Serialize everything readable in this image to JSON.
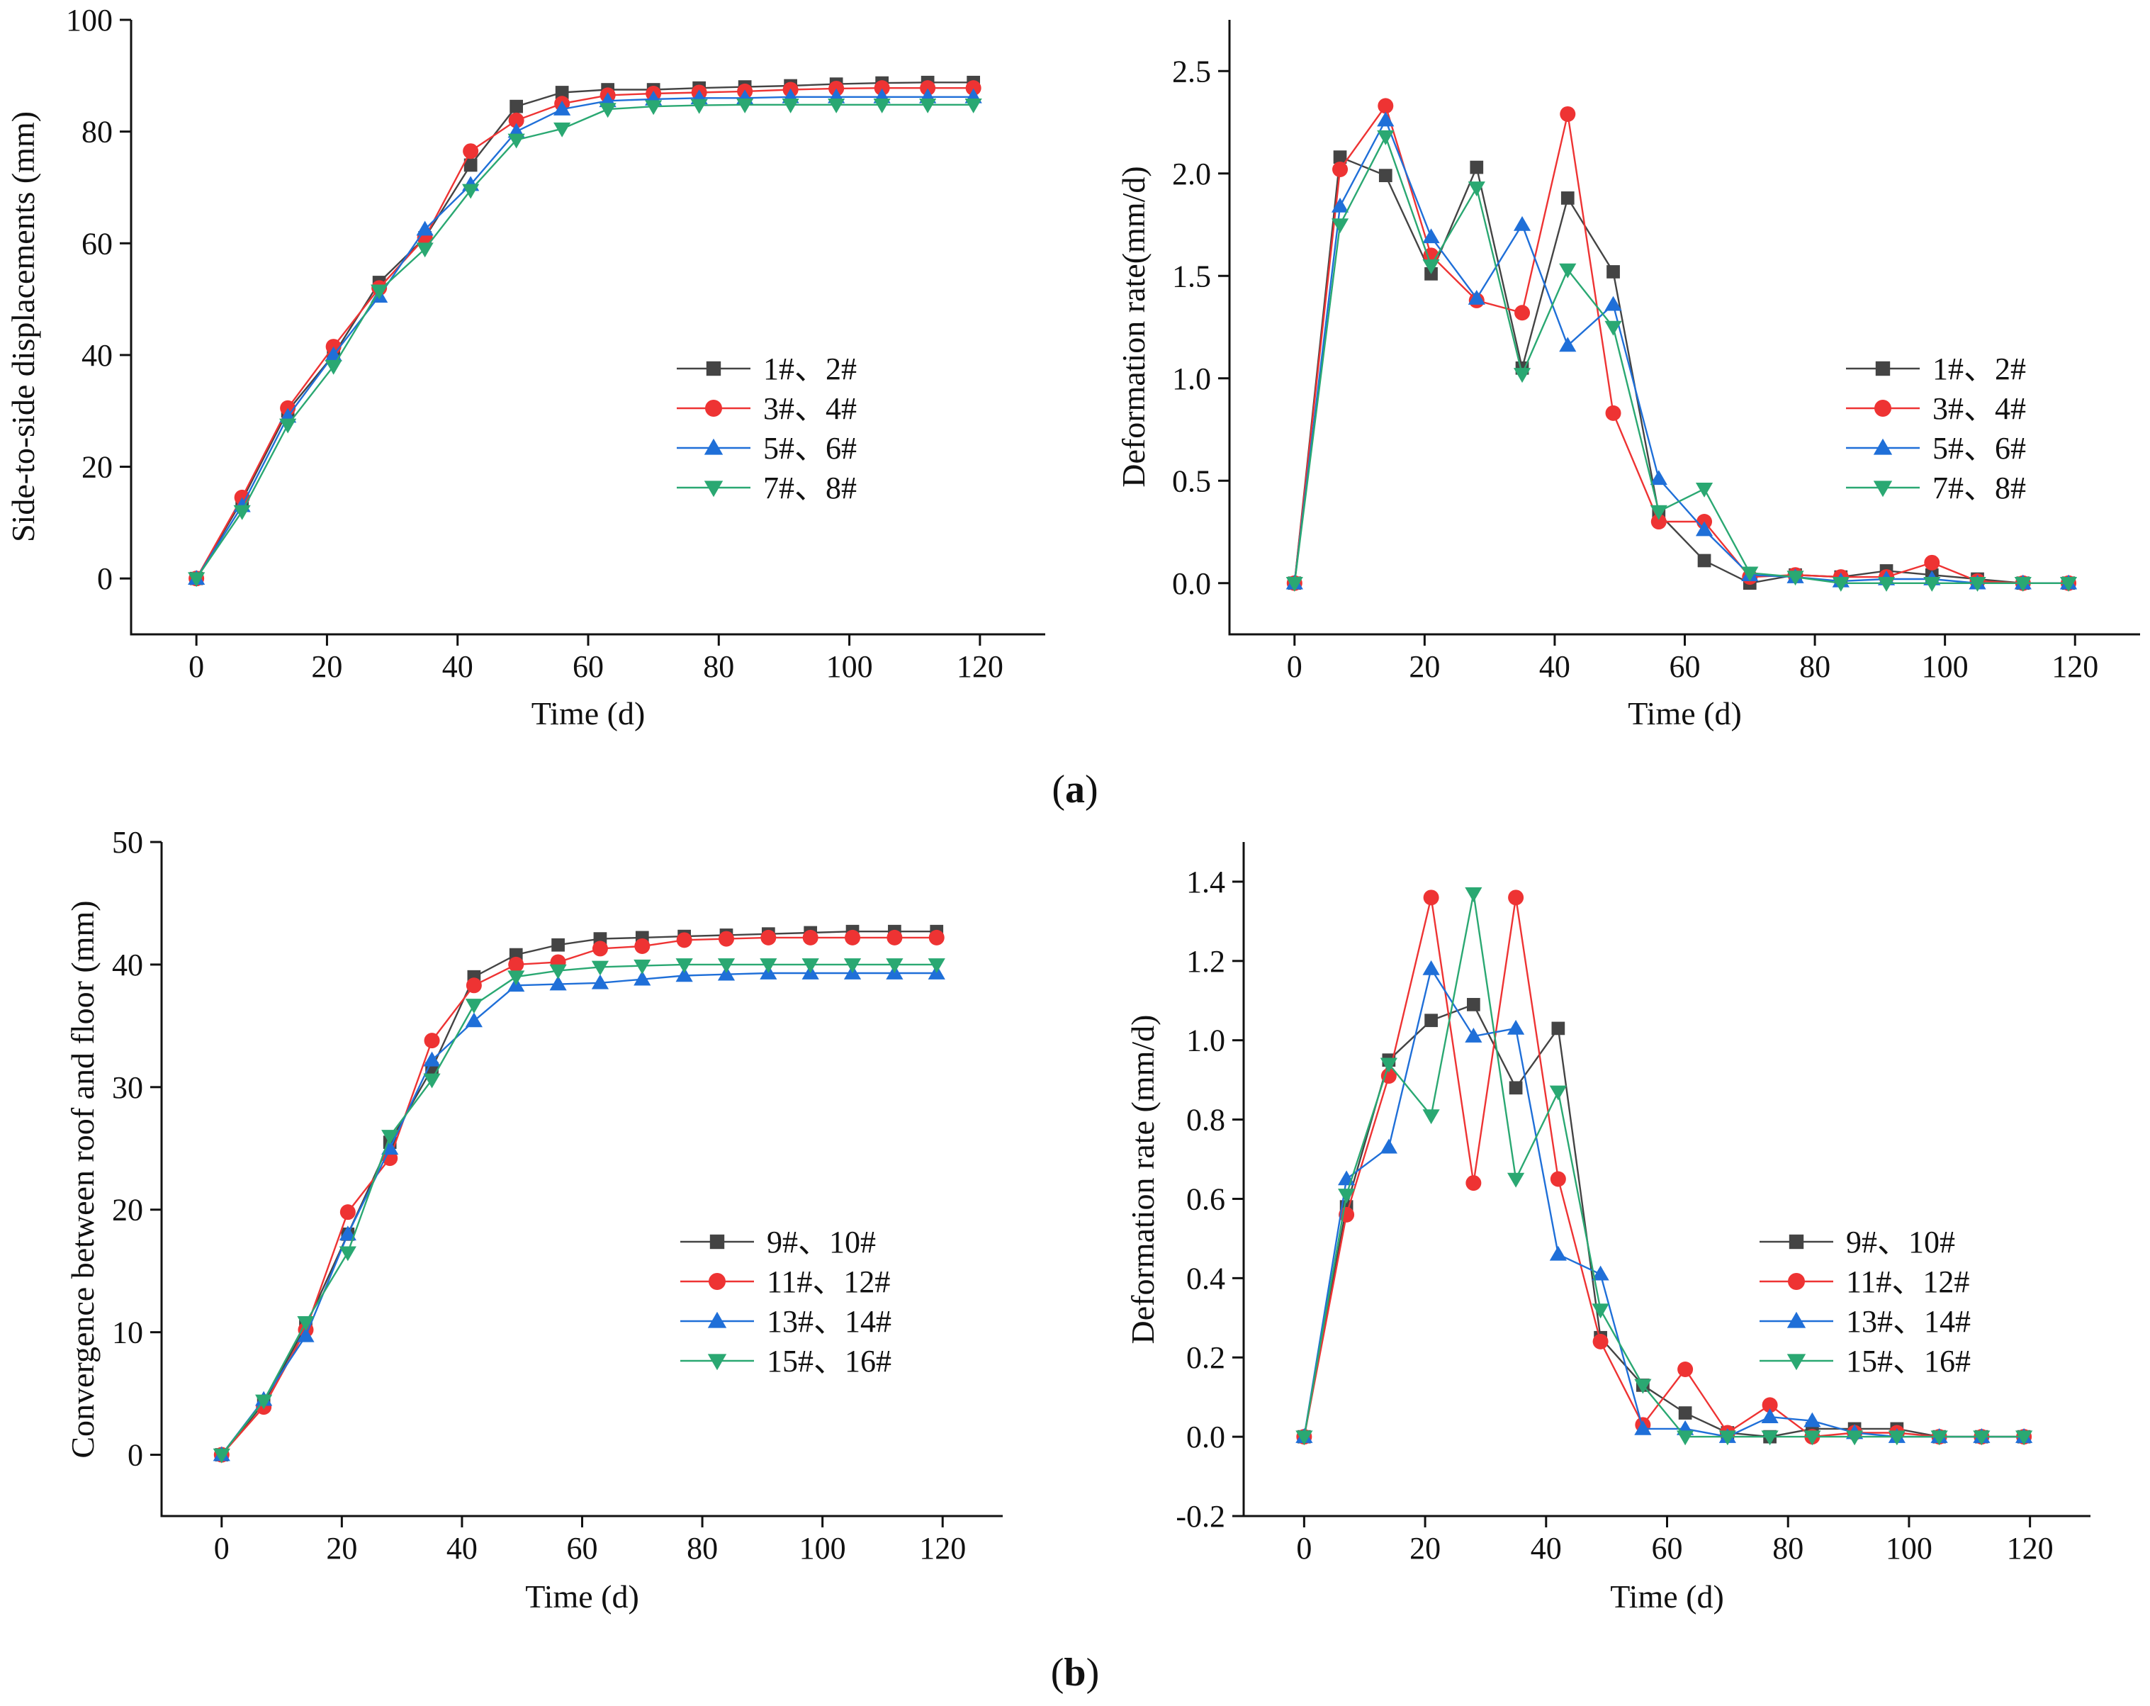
{
  "figure": {
    "panel_a": {
      "open": "(",
      "letter": "a",
      "close": ")"
    },
    "panel_b": {
      "open": "(",
      "letter": "b",
      "close": ")"
    }
  },
  "colors": {
    "black": "#444444",
    "red": "#ee3333",
    "blue": "#1f6fd8",
    "green": "#2aa872"
  },
  "chart_data": [
    {
      "id": "a-left",
      "type": "line",
      "title": "",
      "xlabel": "Time (d)",
      "ylabel": "Side-to-side displacements (mm)",
      "xlim": [
        -10,
        130
      ],
      "ylim": [
        -10,
        100
      ],
      "xticks": [
        0,
        20,
        40,
        60,
        80,
        100,
        120
      ],
      "yticks": [
        0,
        20,
        40,
        60,
        80,
        100
      ],
      "ytick_labels": [
        "0",
        "20",
        "40",
        "60",
        "80",
        "100"
      ],
      "legend_position": "center-right",
      "x": [
        0,
        7,
        14,
        21,
        28,
        35,
        42,
        49,
        56,
        63,
        70,
        77,
        84,
        91,
        98,
        105,
        112,
        119
      ],
      "series": [
        {
          "name": "1#、2#",
          "marker": "square",
          "color": "black",
          "values": [
            0,
            14,
            30,
            40,
            53,
            61,
            74,
            84.5,
            87,
            87.5,
            87.5,
            87.8,
            88,
            88.2,
            88.5,
            88.7,
            88.8,
            88.8
          ]
        },
        {
          "name": "3#、4#",
          "marker": "circle",
          "color": "red",
          "values": [
            0,
            14.5,
            30.5,
            41.5,
            52,
            61,
            76.5,
            82,
            85,
            86.5,
            86.8,
            87,
            87.2,
            87.5,
            87.7,
            87.8,
            87.8,
            87.8
          ]
        },
        {
          "name": "5#、6#",
          "marker": "triangle-up",
          "color": "blue",
          "values": [
            0,
            13,
            29,
            40,
            50.5,
            62.5,
            70.5,
            80,
            84,
            85.5,
            85.8,
            86,
            86,
            86.2,
            86.2,
            86.2,
            86.2,
            86.2
          ]
        },
        {
          "name": "7#、8#",
          "marker": "triangle-down",
          "color": "green",
          "values": [
            0,
            12,
            27.5,
            38,
            51.5,
            59,
            69.5,
            78.5,
            80.5,
            84,
            84.5,
            84.7,
            84.8,
            84.8,
            84.8,
            84.8,
            84.8,
            84.8
          ]
        }
      ]
    },
    {
      "id": "a-right",
      "type": "line",
      "title": "",
      "xlabel": "Time (d)",
      "ylabel": "Deformation rate(mm/d)",
      "xlim": [
        -10,
        130
      ],
      "ylim": [
        -0.25,
        2.75
      ],
      "xticks": [
        0,
        20,
        40,
        60,
        80,
        100,
        120
      ],
      "yticks": [
        0,
        0.5,
        1.0,
        1.5,
        2.0,
        2.5
      ],
      "ytick_labels": [
        "0.0",
        "0.5",
        "1.0",
        "1.5",
        "2.0",
        "2.5"
      ],
      "legend_position": "center-right",
      "x": [
        0,
        7,
        14,
        21,
        28,
        35,
        42,
        49,
        56,
        63,
        70,
        77,
        84,
        91,
        98,
        105,
        112,
        119
      ],
      "series": [
        {
          "name": "1#、2#",
          "marker": "square",
          "color": "black",
          "values": [
            0,
            2.08,
            1.99,
            1.51,
            2.03,
            1.05,
            1.88,
            1.52,
            0.34,
            0.11,
            0,
            0.04,
            0.03,
            0.06,
            0.04,
            0.02,
            0,
            0
          ]
        },
        {
          "name": "3#、4#",
          "marker": "circle",
          "color": "red",
          "values": [
            0,
            2.02,
            2.33,
            1.6,
            1.38,
            1.32,
            2.29,
            0.83,
            0.3,
            0.3,
            0.03,
            0.04,
            0.03,
            0.03,
            0.1,
            0.01,
            0,
            0
          ]
        },
        {
          "name": "5#、6#",
          "marker": "triangle-up",
          "color": "blue",
          "values": [
            0,
            1.84,
            2.26,
            1.69,
            1.39,
            1.75,
            1.16,
            1.36,
            0.51,
            0.26,
            0.04,
            0.03,
            0.01,
            0.02,
            0.02,
            0,
            0,
            0
          ]
        },
        {
          "name": "7#、8#",
          "marker": "triangle-down",
          "color": "green",
          "values": [
            0,
            1.75,
            2.18,
            1.55,
            1.93,
            1.02,
            1.53,
            1.25,
            0.35,
            0.46,
            0.05,
            0.03,
            0,
            0,
            0,
            0,
            0,
            0
          ]
        }
      ]
    },
    {
      "id": "b-left",
      "type": "line",
      "title": "",
      "xlabel": "Time (d)",
      "ylabel": "Convergence between roof and floor (mm)",
      "xlim": [
        -10,
        130
      ],
      "ylim": [
        -5,
        50
      ],
      "xticks": [
        0,
        20,
        40,
        60,
        80,
        100,
        120
      ],
      "yticks": [
        0,
        10,
        20,
        30,
        40,
        50
      ],
      "ytick_labels": [
        "0",
        "10",
        "20",
        "30",
        "40",
        "50"
      ],
      "legend_position": "center-right",
      "x": [
        0,
        7,
        14,
        21,
        28,
        35,
        42,
        49,
        56,
        63,
        70,
        77,
        84,
        91,
        98,
        105,
        112,
        119
      ],
      "series": [
        {
          "name": "9#、10#",
          "marker": "square",
          "color": "black",
          "values": [
            0,
            4.2,
            10.5,
            18,
            25.5,
            31.5,
            39,
            40.8,
            41.6,
            42.1,
            42.2,
            42.3,
            42.4,
            42.5,
            42.6,
            42.7,
            42.7,
            42.7
          ]
        },
        {
          "name": "11#、12#",
          "marker": "circle",
          "color": "red",
          "values": [
            0,
            3.9,
            10.2,
            19.8,
            24.2,
            33.8,
            38.3,
            40,
            40.2,
            41.3,
            41.5,
            42,
            42.1,
            42.2,
            42.2,
            42.2,
            42.2,
            42.2
          ]
        },
        {
          "name": "13#、14#",
          "marker": "triangle-up",
          "color": "blue",
          "values": [
            0,
            4.5,
            9.7,
            18,
            25,
            32.2,
            35.4,
            38.3,
            38.4,
            38.5,
            38.8,
            39.1,
            39.2,
            39.3,
            39.3,
            39.3,
            39.3,
            39.3
          ]
        },
        {
          "name": "15#、16#",
          "marker": "triangle-down",
          "color": "green",
          "values": [
            0,
            4.4,
            10.8,
            16.5,
            26,
            30.6,
            36.7,
            39,
            39.5,
            39.8,
            39.9,
            40,
            40,
            40,
            40,
            40,
            40,
            40
          ]
        }
      ]
    },
    {
      "id": "b-right",
      "type": "line",
      "title": "",
      "xlabel": "Time (d)",
      "ylabel": "Deformation rate (mm/d)",
      "xlim": [
        -10,
        130
      ],
      "ylim": [
        -0.2,
        1.5
      ],
      "xticks": [
        0,
        20,
        40,
        60,
        80,
        100,
        120
      ],
      "yticks": [
        -0.2,
        0,
        0.2,
        0.4,
        0.6,
        0.8,
        1.0,
        1.2,
        1.4
      ],
      "ytick_labels": [
        "-0.2",
        "0.0",
        "0.2",
        "0.4",
        "0.6",
        "0.8",
        "1.0",
        "1.2",
        "1.4"
      ],
      "legend_position": "center-right",
      "x": [
        0,
        7,
        14,
        21,
        28,
        35,
        42,
        49,
        56,
        63,
        70,
        77,
        84,
        91,
        98,
        105,
        112,
        119
      ],
      "series": [
        {
          "name": "9#、10#",
          "marker": "square",
          "color": "black",
          "values": [
            0,
            0.58,
            0.95,
            1.05,
            1.09,
            0.88,
            1.03,
            0.25,
            0.13,
            0.06,
            0.01,
            0,
            0.02,
            0.02,
            0.02,
            0,
            0,
            0
          ]
        },
        {
          "name": "11#、12#",
          "marker": "circle",
          "color": "red",
          "values": [
            0,
            0.56,
            0.91,
            1.36,
            0.64,
            1.36,
            0.65,
            0.24,
            0.03,
            0.17,
            0.01,
            0.08,
            0,
            0.01,
            0.01,
            0,
            0,
            0
          ]
        },
        {
          "name": "13#、14#",
          "marker": "triangle-up",
          "color": "blue",
          "values": [
            0,
            0.65,
            0.73,
            1.18,
            1.01,
            1.03,
            0.46,
            0.41,
            0.02,
            0.02,
            0,
            0.05,
            0.04,
            0.01,
            0,
            0,
            0,
            0
          ]
        },
        {
          "name": "15#、16#",
          "marker": "triangle-down",
          "color": "green",
          "values": [
            0,
            0.61,
            0.94,
            0.81,
            1.37,
            0.65,
            0.87,
            0.32,
            0.13,
            0,
            0,
            0,
            0,
            0,
            0,
            0,
            0,
            0
          ]
        }
      ]
    }
  ]
}
